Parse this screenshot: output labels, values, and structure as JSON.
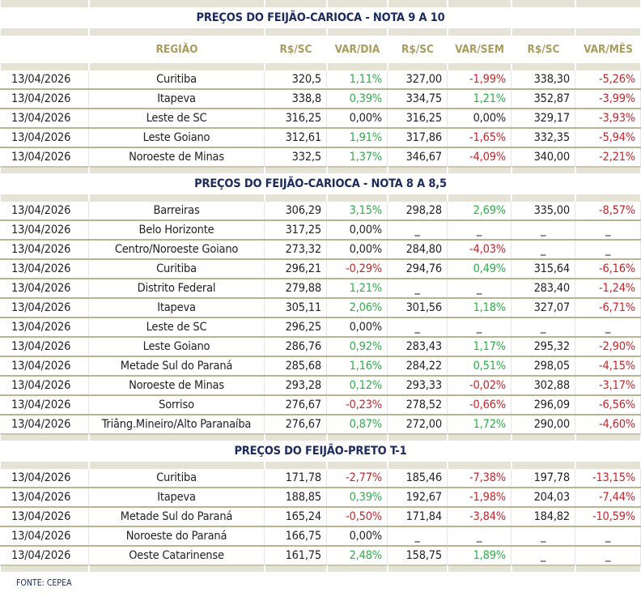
{
  "colors": {
    "positive": "#2fae4b",
    "negative": "#c1272d",
    "title": "#1c2b5e",
    "header": "#a99c5c",
    "band": "#e4e3d5"
  },
  "headers": [
    "",
    "REGIÃO",
    "R$/SC",
    "VAR/DIA",
    "R$/SC",
    "VAR/SEM",
    "R$/SC",
    "VAR/MÊS"
  ],
  "sections": [
    {
      "title": "PREÇOS DO FEIJÃO-CARIOCA - NOTA 9 A 10",
      "show_header": true,
      "rows": [
        [
          "13/04/2026",
          "Curitiba",
          "320,5",
          "1,11%",
          "327,00",
          "-1,99%",
          "338,30",
          "-5,26%"
        ],
        [
          "13/04/2026",
          "Itapeva",
          "338,8",
          "0,39%",
          "334,75",
          "1,21%",
          "352,87",
          "-3,99%"
        ],
        [
          "13/04/2026",
          "Leste de SC",
          "316,25",
          "0,00%",
          "316,25",
          "0,00%",
          "329,17",
          "-3,93%"
        ],
        [
          "13/04/2026",
          "Leste Goiano",
          "312,61",
          "1,91%",
          "317,86",
          "-1,65%",
          "332,35",
          "-5,94%"
        ],
        [
          "13/04/2026",
          "Noroeste de Minas",
          "332,5",
          "1,37%",
          "346,67",
          "-4,09%",
          "340,00",
          "-2,21%"
        ]
      ]
    },
    {
      "title": "PREÇOS DO FEIJÃO-CARIOCA - NOTA 8 A 8,5",
      "show_header": false,
      "rows": [
        [
          "13/04/2026",
          "Barreiras",
          "306,29",
          "3,15%",
          "298,28",
          "2,69%",
          "335,00",
          "-8,57%"
        ],
        [
          "13/04/2026",
          "Belo Horizonte",
          "317,25",
          "0,00%",
          "_",
          "_",
          "_",
          "_"
        ],
        [
          "13/04/2026",
          "Centro/Noroeste Goiano",
          "273,32",
          "0,00%",
          "284,80",
          "-4,03%",
          "_",
          "_"
        ],
        [
          "13/04/2026",
          "Curitiba",
          "296,21",
          "-0,29%",
          "294,76",
          "0,49%",
          "315,64",
          "-6,16%"
        ],
        [
          "13/04/2026",
          "Distrito Federal",
          "279,88",
          "1,21%",
          "_",
          "_",
          "283,40",
          "-1,24%"
        ],
        [
          "13/04/2026",
          "Itapeva",
          "305,11",
          "2,06%",
          "301,56",
          "1,18%",
          "327,07",
          "-6,71%"
        ],
        [
          "13/04/2026",
          "Leste de SC",
          "296,25",
          "0,00%",
          "_",
          "_",
          "_",
          "_"
        ],
        [
          "13/04/2026",
          "Leste Goiano",
          "286,76",
          "0,92%",
          "283,43",
          "1,17%",
          "295,32",
          "-2,90%"
        ],
        [
          "13/04/2026",
          "Metade Sul do Paraná",
          "285,68",
          "1,16%",
          "284,22",
          "0,51%",
          "298,05",
          "-4,15%"
        ],
        [
          "13/04/2026",
          "Noroeste de Minas",
          "293,28",
          "0,12%",
          "293,33",
          "-0,02%",
          "302,88",
          "-3,17%"
        ],
        [
          "13/04/2026",
          "Sorriso",
          "276,67",
          "-0,23%",
          "278,52",
          "-0,66%",
          "296,09",
          "-6,56%"
        ],
        [
          "13/04/2026",
          "Triâng.Mineiro/Alto Paranaíba",
          "276,67",
          "0,87%",
          "272,00",
          "1,72%",
          "290,00",
          "-4,60%"
        ]
      ]
    },
    {
      "title": "PREÇOS DO  FEIJÃO-PRETO  T-1",
      "show_header": false,
      "rows": [
        [
          "13/04/2026",
          "Curitiba",
          "171,78",
          "-2,77%",
          "185,46",
          "-7,38%",
          "197,78",
          "-13,15%"
        ],
        [
          "13/04/2026",
          "Itapeva",
          "188,85",
          "0,39%",
          "192,67",
          "-1,98%",
          "204,03",
          "-7,44%"
        ],
        [
          "13/04/2026",
          "Metade Sul do Paraná",
          "165,24",
          "-0,50%",
          "171,84",
          "-3,84%",
          "184,82",
          "-10,59%"
        ],
        [
          "13/04/2026",
          "Noroeste do Paraná",
          "166,75",
          "0,00%",
          "_",
          "_",
          "_",
          "_"
        ],
        [
          "13/04/2026",
          "Oeste Catarinense",
          "161,75",
          "2,48%",
          "158,75",
          "1,89%",
          "_",
          "_"
        ]
      ]
    }
  ],
  "footer": "FONTE: CEPEA"
}
